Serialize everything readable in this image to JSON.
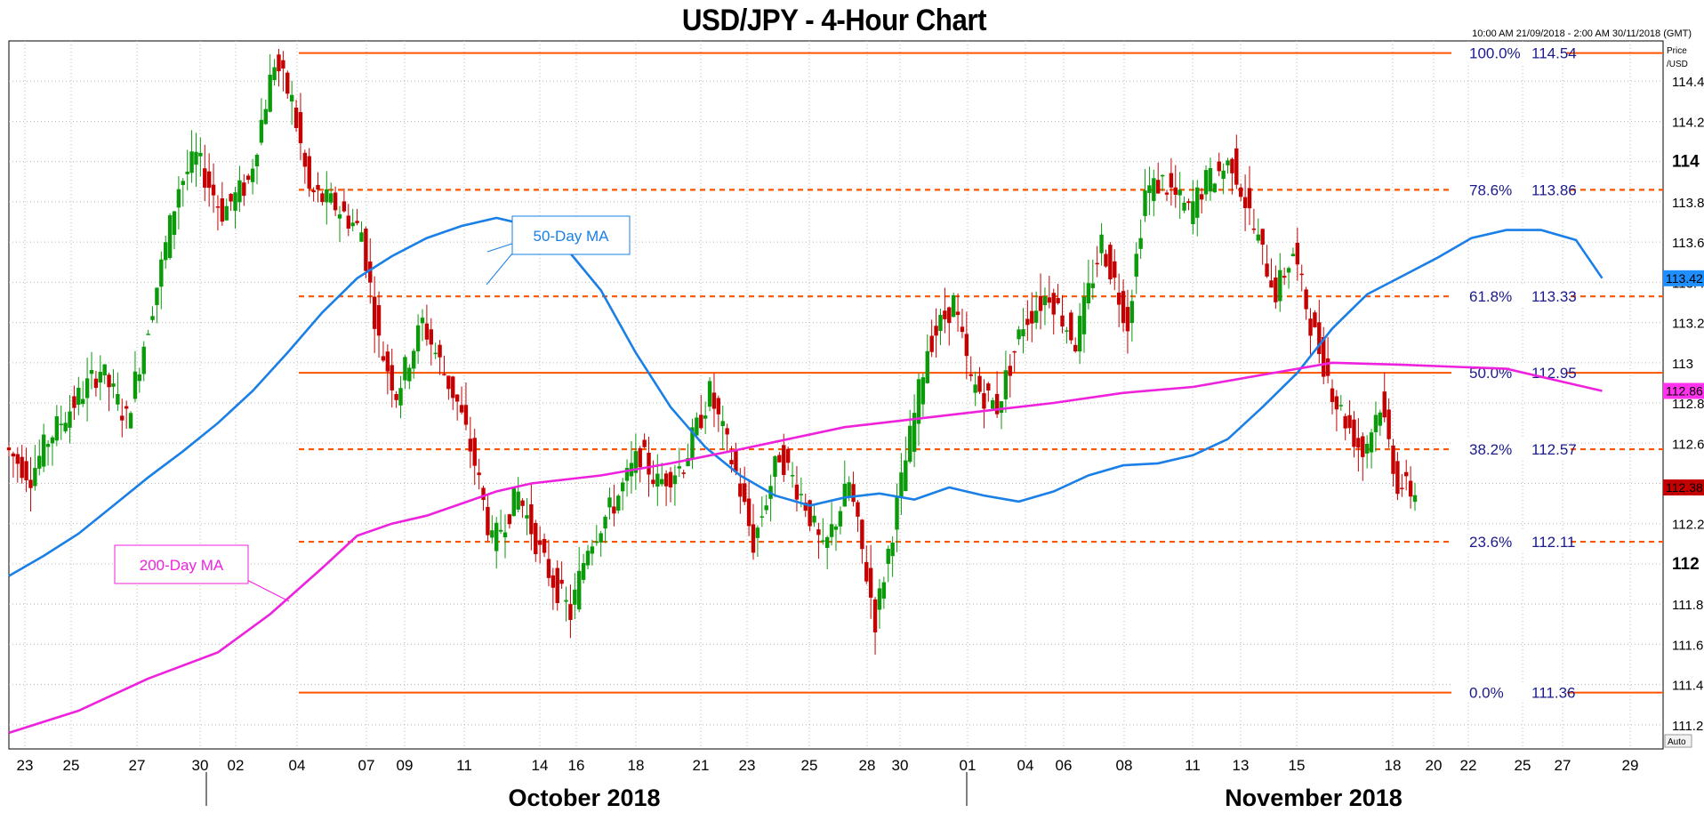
{
  "chart_data": {
    "type": "candlestick",
    "title": "USD/JPY - 4-Hour Chart",
    "date_range": "10:00 AM 21/09/2018 - 2:00 AM 30/11/2018 (GMT)",
    "ylabel": "Price\n/USD",
    "ylim": [
      111.08,
      114.6
    ],
    "x_tick_labels": [
      "23",
      "25",
      "27",
      "30",
      "02",
      "04",
      "07",
      "09",
      "11",
      "14",
      "16",
      "18",
      "21",
      "23",
      "25",
      "28",
      "30",
      "01",
      "04",
      "06",
      "08",
      "11",
      "13",
      "15",
      "18",
      "20",
      "22",
      "25",
      "27",
      "29"
    ],
    "month_labels": [
      "October 2018",
      "November 2018"
    ],
    "y_ticks": [
      111.2,
      111.4,
      111.6,
      111.8,
      112,
      112.2,
      112.4,
      112.6,
      112.8,
      113,
      113.2,
      113.4,
      113.6,
      113.8,
      114,
      114.2,
      114.4
    ],
    "y_tick_labels": [
      "111.2",
      "111.4",
      "111.6",
      "111.8",
      "112",
      "112.2",
      "112.4",
      "112.6",
      "112.8",
      "113",
      "113.2",
      "113.4",
      "113.6",
      "113.8",
      "114",
      "114.2",
      "114.4"
    ],
    "y_tick_bold": [
      "112",
      "114"
    ],
    "auto_label": "Auto",
    "fib_levels": [
      {
        "label": "100.0%",
        "value": 114.54,
        "value_text": "114.54",
        "style": "solid"
      },
      {
        "label": "78.6%",
        "value": 113.86,
        "value_text": "113.86",
        "style": "dashed"
      },
      {
        "label": "61.8%",
        "value": 113.33,
        "value_text": "113.33",
        "style": "dashed"
      },
      {
        "label": "50.0%",
        "value": 112.95,
        "value_text": "112.95",
        "style": "solid"
      },
      {
        "label": "38.2%",
        "value": 112.57,
        "value_text": "112.57",
        "style": "dashed"
      },
      {
        "label": "23.6%",
        "value": 112.11,
        "value_text": "112.11",
        "style": "dashed"
      },
      {
        "label": "0.0%",
        "value": 111.36,
        "value_text": "111.36",
        "style": "solid"
      }
    ],
    "price_tags": [
      {
        "value": 113.42,
        "text": "113.42",
        "color": "#1f8fff"
      },
      {
        "value": 112.86,
        "text": "112.86",
        "color": "#ff33ee"
      },
      {
        "value": 112.38,
        "text": "112.38",
        "color": "#c40000"
      }
    ],
    "series": [
      {
        "name": "50-Day MA",
        "color": "#1a7fe6",
        "points": [
          [
            0,
            111.94
          ],
          [
            8,
            112.04
          ],
          [
            16,
            112.15
          ],
          [
            24,
            112.29
          ],
          [
            32,
            112.43
          ],
          [
            40,
            112.56
          ],
          [
            48,
            112.7
          ],
          [
            56,
            112.86
          ],
          [
            64,
            113.05
          ],
          [
            72,
            113.25
          ],
          [
            80,
            113.42
          ],
          [
            88,
            113.53
          ],
          [
            96,
            113.62
          ],
          [
            104,
            113.68
          ],
          [
            112,
            113.72
          ],
          [
            120,
            113.68
          ],
          [
            128,
            113.57
          ],
          [
            136,
            113.36
          ],
          [
            144,
            113.05
          ],
          [
            152,
            112.78
          ],
          [
            160,
            112.58
          ],
          [
            168,
            112.44
          ],
          [
            176,
            112.34
          ],
          [
            184,
            112.29
          ],
          [
            192,
            112.33
          ],
          [
            200,
            112.35
          ],
          [
            208,
            112.32
          ],
          [
            216,
            112.38
          ],
          [
            224,
            112.34
          ],
          [
            232,
            112.31
          ],
          [
            240,
            112.36
          ],
          [
            248,
            112.44
          ],
          [
            256,
            112.49
          ],
          [
            264,
            112.5
          ],
          [
            272,
            112.54
          ],
          [
            280,
            112.62
          ],
          [
            288,
            112.78
          ],
          [
            296,
            112.95
          ],
          [
            304,
            113.17
          ],
          [
            312,
            113.34
          ],
          [
            320,
            113.43
          ],
          [
            328,
            113.52
          ],
          [
            336,
            113.62
          ],
          [
            344,
            113.66
          ],
          [
            352,
            113.66
          ],
          [
            360,
            113.61
          ],
          [
            366,
            113.42
          ]
        ]
      },
      {
        "name": "200-Day MA",
        "color": "#ee22dd",
        "points": [
          [
            0,
            111.16
          ],
          [
            16,
            111.27
          ],
          [
            32,
            111.43
          ],
          [
            48,
            111.56
          ],
          [
            60,
            111.75
          ],
          [
            72,
            111.98
          ],
          [
            80,
            112.14
          ],
          [
            88,
            112.2
          ],
          [
            96,
            112.24
          ],
          [
            104,
            112.3
          ],
          [
            112,
            112.36
          ],
          [
            120,
            112.4
          ],
          [
            128,
            112.42
          ],
          [
            136,
            112.44
          ],
          [
            152,
            112.5
          ],
          [
            168,
            112.57
          ],
          [
            192,
            112.68
          ],
          [
            216,
            112.74
          ],
          [
            240,
            112.8
          ],
          [
            256,
            112.85
          ],
          [
            272,
            112.88
          ],
          [
            288,
            112.94
          ],
          [
            304,
            113.0
          ],
          [
            320,
            112.99
          ],
          [
            344,
            112.97
          ],
          [
            366,
            112.86
          ]
        ]
      },
      {
        "name": "USD/JPY",
        "color": "#0a9a0a",
        "down_color": "#c40000",
        "ohlc_close_points": [
          [
            0,
            112.58
          ],
          [
            6,
            112.44
          ],
          [
            10,
            112.62
          ],
          [
            16,
            112.8
          ],
          [
            22,
            112.97
          ],
          [
            28,
            112.72
          ],
          [
            32,
            113.1
          ],
          [
            36,
            113.48
          ],
          [
            40,
            113.88
          ],
          [
            44,
            114.02
          ],
          [
            50,
            113.75
          ],
          [
            56,
            113.9
          ],
          [
            62,
            114.5
          ],
          [
            66,
            114.3
          ],
          [
            70,
            113.85
          ],
          [
            76,
            113.78
          ],
          [
            82,
            113.65
          ],
          [
            86,
            113.1
          ],
          [
            90,
            112.85
          ],
          [
            96,
            113.2
          ],
          [
            100,
            113.0
          ],
          [
            104,
            112.8
          ],
          [
            108,
            112.5
          ],
          [
            112,
            112.1
          ],
          [
            118,
            112.35
          ],
          [
            124,
            112.0
          ],
          [
            130,
            111.75
          ],
          [
            134,
            112.1
          ],
          [
            140,
            112.3
          ],
          [
            146,
            112.55
          ],
          [
            150,
            112.4
          ],
          [
            156,
            112.5
          ],
          [
            162,
            112.85
          ],
          [
            168,
            112.45
          ],
          [
            172,
            112.1
          ],
          [
            178,
            112.55
          ],
          [
            184,
            112.3
          ],
          [
            188,
            112.05
          ],
          [
            194,
            112.4
          ],
          [
            200,
            111.72
          ],
          [
            206,
            112.4
          ],
          [
            212,
            113.08
          ],
          [
            218,
            113.3
          ],
          [
            222,
            112.9
          ],
          [
            228,
            112.78
          ],
          [
            234,
            113.2
          ],
          [
            240,
            113.35
          ],
          [
            246,
            113.1
          ],
          [
            252,
            113.6
          ],
          [
            258,
            113.2
          ],
          [
            262,
            113.85
          ],
          [
            266,
            113.9
          ],
          [
            272,
            113.75
          ],
          [
            276,
            113.9
          ],
          [
            282,
            114.0
          ],
          [
            288,
            113.6
          ],
          [
            292,
            113.35
          ],
          [
            296,
            113.55
          ],
          [
            300,
            113.2
          ],
          [
            306,
            112.8
          ],
          [
            312,
            112.55
          ],
          [
            316,
            112.8
          ],
          [
            320,
            112.4
          ],
          [
            324,
            112.35
          ]
        ]
      }
    ],
    "annotations": [
      {
        "text": "50-Day MA",
        "color": "#1a7fe6"
      },
      {
        "text": "200-Day MA",
        "color": "#ee22dd"
      }
    ]
  }
}
